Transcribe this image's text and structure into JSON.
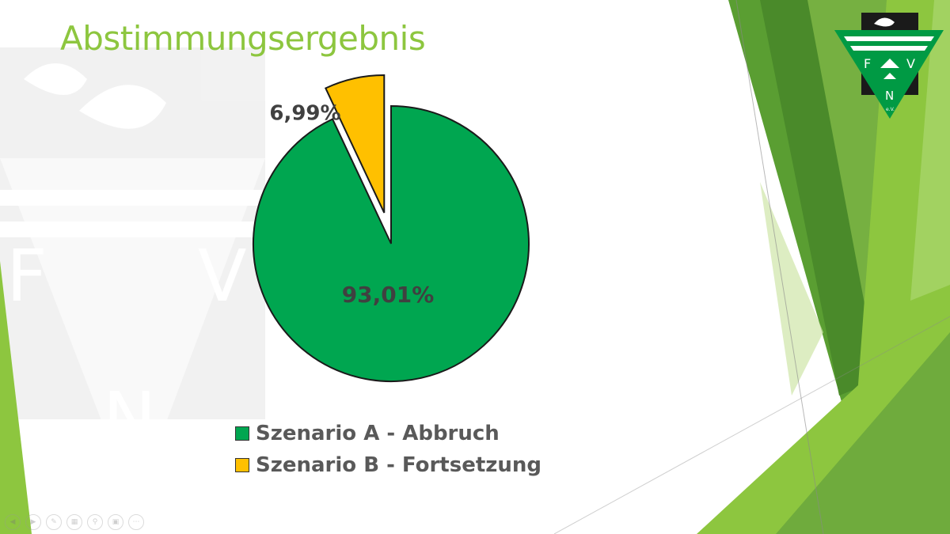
{
  "slide": {
    "title": "Abstimmungsergebnis"
  },
  "logo": {
    "letters": [
      "F",
      "V",
      "N",
      "e.V."
    ]
  },
  "colors": {
    "accent": "#8dc63f",
    "series_a": "#00a650",
    "series_b": "#ffc000",
    "label_text": "#404040",
    "legend_text": "#595959"
  },
  "chart_data": {
    "type": "pie",
    "title": "",
    "categories": [
      "Szenario A - Abbruch",
      "Szenario B - Fortsetzung"
    ],
    "values": [
      93.01,
      6.99
    ],
    "data_labels": [
      "93,01%",
      "6,99%"
    ],
    "colors": [
      "#00a650",
      "#ffc000"
    ],
    "exploded": [
      false,
      true
    ],
    "legend_position": "bottom"
  },
  "toolbar": {
    "icons": [
      "prev-icon",
      "next-icon",
      "pen-icon",
      "slides-icon",
      "zoom-icon",
      "subtitles-icon",
      "more-icon"
    ]
  }
}
